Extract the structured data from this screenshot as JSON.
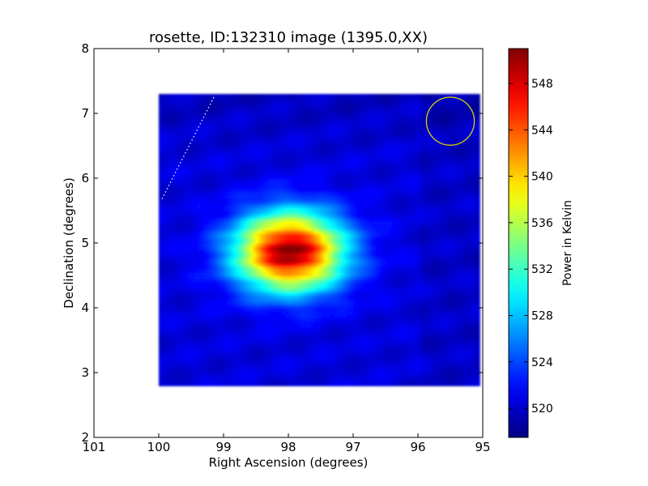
{
  "chart_data": {
    "type": "heatmap",
    "title": "rosette, ID:132310 image (1395.0,XX)",
    "xlabel": "Right Ascension (degrees)",
    "ylabel": "Declination (degrees)",
    "xlim": [
      101,
      95
    ],
    "ylim": [
      2,
      8
    ],
    "xticks": [
      101,
      100,
      99,
      98,
      97,
      96,
      95
    ],
    "yticks": [
      2,
      3,
      4,
      5,
      6,
      7,
      8
    ],
    "grid": false,
    "colorbar": {
      "label": "Power in Kelvin",
      "range": [
        517.5,
        551
      ],
      "ticks": [
        520,
        524,
        528,
        532,
        536,
        540,
        544,
        548
      ],
      "colormap": "jet"
    },
    "map_region": {
      "ra_range": [
        100.0,
        95.1
      ],
      "dec_range": [
        2.8,
        7.25
      ],
      "background_level": 520.5
    },
    "source": {
      "center_ra": 98.0,
      "center_dec": 4.85,
      "peak": 550.5,
      "sigma_ra": 0.58,
      "sigma_dec": 0.42
    },
    "beam_circle": {
      "center_ra": 95.5,
      "center_dec": 6.88,
      "radius_deg": 0.37,
      "color": "#d6d600"
    },
    "dotted_line": {
      "from": [
        99.15,
        7.25
      ],
      "to": [
        99.95,
        5.68
      ],
      "color": "#ffffff"
    }
  }
}
